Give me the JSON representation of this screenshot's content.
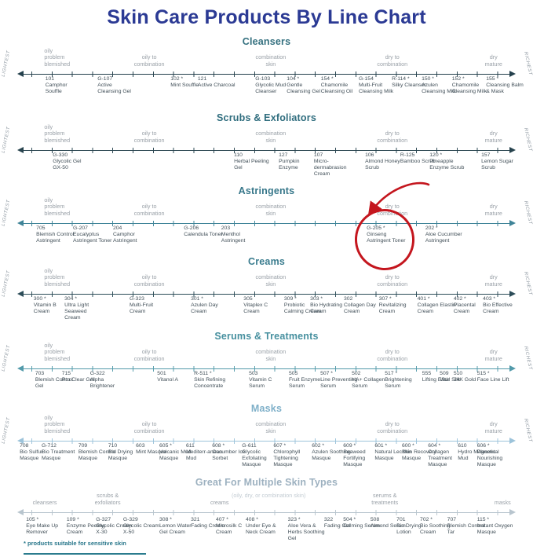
{
  "title": "Skin Care Products By Line Chart",
  "footnote": "* products suitable for sensitive skin",
  "colors": {
    "title": "#2b3a94",
    "zone_label": "#9aa1a8",
    "product_text": "#414f58",
    "side_label": "#8f99a2",
    "footnote": "#27768a",
    "annotation_red": "#c4161e"
  },
  "chart_data": {
    "type": "line",
    "title": "Skin Care Products By Line Chart",
    "axis": {
      "left_end_label": "LIGHTEST",
      "right_end_label": "RICHEST",
      "scale_note": "each section is a number line from lightest to richest product; x = position_pct (0-100) along the line"
    },
    "standard_zones": [
      {
        "lines": [
          "oily",
          "problem",
          "blemished"
        ],
        "center_pct": 8.3,
        "align": "left"
      },
      {
        "lines": [
          "oily to",
          "combination"
        ],
        "center_pct": 28.0
      },
      {
        "lines": [
          "combination",
          "skin"
        ],
        "center_pct": 50.8
      },
      {
        "lines": [
          "dry to",
          "combination"
        ],
        "center_pct": 73.6
      },
      {
        "lines": [
          "dry",
          "mature"
        ],
        "center_pct": 92.6
      }
    ],
    "multi_zones": [
      {
        "lines": [
          "cleansers"
        ],
        "center_pct": 8.4
      },
      {
        "lines": [
          "scrubs &",
          "exfoliators"
        ],
        "center_pct": 20.2
      },
      {
        "lines": [
          "(oily, dry, or combination skin)"
        ],
        "center_pct": 50.4,
        "muted": true,
        "raise": 9
      },
      {
        "lines": [
          "creams"
        ],
        "center_pct": 41.2
      },
      {
        "lines": [
          "serums &",
          "treatments"
        ],
        "center_pct": 72.2
      },
      {
        "lines": [
          "masks"
        ],
        "center_pct": 94.3
      }
    ],
    "annotation": {
      "section": "Astringents",
      "product_code": "G-205 *",
      "shape": "hand-drawn red circle with curved arrow",
      "color": "#c4161e"
    },
    "sections": [
      {
        "name": "Cleansers",
        "heading_color": "#34707f",
        "line_color": "#24404c",
        "products": [
          {
            "code": "101",
            "name": "Camphor Souffle",
            "x": 8.5
          },
          {
            "code": "G-107",
            "name": "Active Cleansing Gel",
            "x": 18.3
          },
          {
            "code": "102 *",
            "name": "Mint Souffle",
            "x": 32.0
          },
          {
            "code": "121",
            "name": "Active Charcoal",
            "x": 37.1
          },
          {
            "code": "G-103",
            "name": "Glycolic Mud Cleanser",
            "x": 47.9
          },
          {
            "code": "104 *",
            "name": "Gentle Cleansing Gel",
            "x": 53.8
          },
          {
            "code": "154 *",
            "name": "Chamomile Cleansing Oil",
            "x": 60.2
          },
          {
            "code": "G-154",
            "name": "Multi-Fruit Cleansing Milk",
            "x": 67.3
          },
          {
            "code": "R-114 *",
            "name": "Silky Cleanser",
            "x": 73.5
          },
          {
            "code": "150 *",
            "name": "Azulen Cleansing Milk",
            "x": 79.1
          },
          {
            "code": "152 *",
            "name": "Chamomile Cleansing Milk",
            "x": 84.8
          },
          {
            "code": "155 *",
            "name": "Cleansing Balm & Mask",
            "x": 91.2
          }
        ]
      },
      {
        "name": "Scrubs & Exfoliators",
        "heading_color": "#2f6d7e",
        "line_color": "#27434e",
        "products": [
          {
            "code": "G-330",
            "name": "Glycolic Gel GX-50",
            "x": 9.9
          },
          {
            "code": "110",
            "name": "Herbal Peeling Gel",
            "x": 43.9
          },
          {
            "code": "127",
            "name": "Pumpkin Enzyme",
            "x": 52.3
          },
          {
            "code": "107",
            "name": "Micro-dermabrasion Cream",
            "x": 58.9
          },
          {
            "code": "106",
            "name": "Almond Honey Scrub",
            "x": 68.5
          },
          {
            "code": "R-125",
            "name": "Bamboo Scrub",
            "x": 75.1
          },
          {
            "code": "120 *",
            "name": "Pineapple Enzyme Scrub",
            "x": 80.6
          },
          {
            "code": "157",
            "name": "Lemon Sugar Scrub",
            "x": 90.3
          }
        ]
      },
      {
        "name": "Astringents",
        "heading_color": "#37778a",
        "line_color": "#3f8498",
        "annotated_code": "G-205 *",
        "products": [
          {
            "code": "705",
            "name": "Blemish Control Astringent",
            "x": 6.8
          },
          {
            "code": "G-207",
            "name": "Eucalyptus Astringent Toner",
            "x": 13.7
          },
          {
            "code": "204",
            "name": "Camphor Astringent",
            "x": 21.2
          },
          {
            "code": "G-206",
            "name": "Calendula Toner",
            "x": 34.5
          },
          {
            "code": "203",
            "name": "Menthol Astringent",
            "x": 41.5
          },
          {
            "code": "G-205 *",
            "name": "Ginseng Astringent Toner",
            "x": 68.8
          },
          {
            "code": "202 *",
            "name": "Aloe Cucumber Astringent",
            "x": 79.8
          }
        ]
      },
      {
        "name": "Creams",
        "heading_color": "#3a7c8e",
        "line_color": "#2c4c58",
        "products": [
          {
            "code": "300 *",
            "name": "Vitamin B Cream",
            "x": 6.3
          },
          {
            "code": "304 *",
            "name": "Ultra Light Seaweed Cream",
            "x": 12.1
          },
          {
            "code": "G-323",
            "name": "Multi-Fruit Cream",
            "x": 24.3
          },
          {
            "code": "301 *",
            "name": "Azulen Day Cream",
            "x": 35.8
          },
          {
            "code": "305",
            "name": "Vitaplex C Cream",
            "x": 45.7
          },
          {
            "code": "309 *",
            "name": "Probiotic Calming Cream",
            "x": 53.3
          },
          {
            "code": "303 *",
            "name": "Bio Hydrating Cream",
            "x": 58.2
          },
          {
            "code": "302",
            "name": "Collagen Day Cream",
            "x": 64.5
          },
          {
            "code": "307 *",
            "name": "Revitalizing Cream",
            "x": 71.1
          },
          {
            "code": "401 *",
            "name": "Collagen Elastin Cream",
            "x": 78.3
          },
          {
            "code": "402 *",
            "name": "Placental Cream",
            "x": 85.1
          },
          {
            "code": "403 *",
            "name": "Bio Effective Cream",
            "x": 90.6
          }
        ]
      },
      {
        "name": "Serums & Treatments",
        "heading_color": "#47909f",
        "line_color": "#529aaa",
        "products": [
          {
            "code": "703",
            "name": "Blemish Control Gel",
            "x": 6.6
          },
          {
            "code": "715",
            "name": "Pro Clear Gel",
            "x": 11.6
          },
          {
            "code": "G-322",
            "name": "Alpha Brightener",
            "x": 16.9
          },
          {
            "code": "501",
            "name": "Vitanol A",
            "x": 29.5
          },
          {
            "code": "R-511 *",
            "name": "Skin Refining Concentrate",
            "x": 36.4
          },
          {
            "code": "503",
            "name": "Vitamin C Serum",
            "x": 46.7
          },
          {
            "code": "505",
            "name": "Fruit Enzyme Serum",
            "x": 54.2
          },
          {
            "code": "507 *",
            "name": "Line Preventing Serum",
            "x": 60.1
          },
          {
            "code": "502",
            "name": "HA+ Collagen Serum",
            "x": 66.0
          },
          {
            "code": "517 *",
            "name": "Brightening Serum",
            "x": 72.2
          },
          {
            "code": "555",
            "name": "Lifting Elixir",
            "x": 79.2
          },
          {
            "code": "509",
            "name": "Vital Silk",
            "x": 82.5
          },
          {
            "code": "510",
            "name": "24K Gold",
            "x": 85.1
          },
          {
            "code": "515 *",
            "name": "Face Line Lift",
            "x": 89.5
          }
        ]
      },
      {
        "name": "Masks",
        "heading_color": "#7fb0c9",
        "line_color": "#9cc3da",
        "products": [
          {
            "code": "708",
            "name": "Bio Sulfur Masque",
            "x": 3.7
          },
          {
            "code": "G-712",
            "name": "Bio Treatment Masque",
            "x": 7.8
          },
          {
            "code": "709",
            "name": "Blemish Control Masque",
            "x": 14.7
          },
          {
            "code": "710",
            "name": "Bio Drying Masque",
            "x": 20.3
          },
          {
            "code": "603",
            "name": "Mint Masque",
            "x": 25.5
          },
          {
            "code": "605 *",
            "name": "Volcanic Mud Masque",
            "x": 29.9
          },
          {
            "code": "611",
            "name": "Mediterr-anean Mud",
            "x": 34.9
          },
          {
            "code": "608 *",
            "name": "Cucumber Ice Sorbet",
            "x": 39.8
          },
          {
            "code": "G-611",
            "name": "Glycolic Exfoliating Masque",
            "x": 45.4
          },
          {
            "code": "607 *",
            "name": "Chlorophyll Tightening Masque",
            "x": 51.3
          },
          {
            "code": "602 *",
            "name": "Azulen Soothing Masque",
            "x": 58.5
          },
          {
            "code": "609 *",
            "name": "Seaweed Fortifying Masque",
            "x": 64.4
          },
          {
            "code": "601 *",
            "name": "Natural Lecithin Masque",
            "x": 70.3
          },
          {
            "code": "600 *",
            "name": "Skin Recovery Masque",
            "x": 75.4
          },
          {
            "code": "604 *",
            "name": "Collagen Treatment Masque",
            "x": 80.3
          },
          {
            "code": "610",
            "name": "Hydro Magnetic Mud",
            "x": 85.9
          },
          {
            "code": "606 *",
            "name": "Placental Nourishing Masque",
            "x": 89.5
          }
        ]
      },
      {
        "name": "Great For Multiple Skin Types",
        "heading_color": "#9db1c0",
        "line_color": "#b8c5ce",
        "multi": true,
        "products": [
          {
            "code": "105 *",
            "name": "Eye Make Up Remover",
            "x": 4.9
          },
          {
            "code": "109 *",
            "name": "Enzyme Peeling Cream",
            "x": 12.5
          },
          {
            "code": "G-327",
            "name": "Glycolic Cream X-30",
            "x": 18.0
          },
          {
            "code": "G-329",
            "name": "Glycolic Cream X-50",
            "x": 23.1
          },
          {
            "code": "308 *",
            "name": "Lemon Water Gel Cream",
            "x": 29.9
          },
          {
            "code": "321",
            "name": "Fading Cream",
            "x": 35.8
          },
          {
            "code": "407 *",
            "name": "Microsilk C Cream",
            "x": 40.5
          },
          {
            "code": "408 *",
            "name": "Under Eye & Neck Cream",
            "x": 46.1
          },
          {
            "code": "323 *",
            "name": "Aloe Vera & Herbs Soothing Gel",
            "x": 54.0
          },
          {
            "code": "322",
            "name": "Fading Gel",
            "x": 60.8
          },
          {
            "code": "504 *",
            "name": "Calming Serum",
            "x": 64.4
          },
          {
            "code": "508",
            "name": "Almond Serum",
            "x": 69.5
          },
          {
            "code": "701",
            "name": "Bio Drying Lotion",
            "x": 74.4
          },
          {
            "code": "702 *",
            "name": "Bio Soothing Cream",
            "x": 78.8
          },
          {
            "code": "707",
            "name": "Blemish Control Tar",
            "x": 83.9
          },
          {
            "code": "115 *",
            "name": "Instant Oxygen Masque",
            "x": 89.5
          }
        ]
      }
    ]
  }
}
